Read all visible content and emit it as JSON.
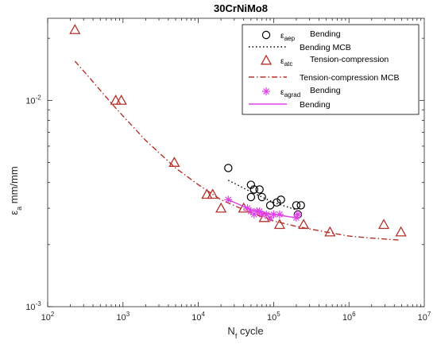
{
  "chart_data": {
    "type": "scatter",
    "title": "30CrNiMo8",
    "xlabel": {
      "base": "N",
      "sub": "f",
      "rest": " cycle"
    },
    "ylabel": {
      "base": "ε",
      "sub": "a",
      "rest": " mm/mm"
    },
    "x_scale": "log",
    "y_scale": "log",
    "xlim": [
      100,
      10000000
    ],
    "ylim": [
      0.001,
      0.025
    ],
    "x_ticks": [
      {
        "value": 100,
        "base": "10",
        "exp": "2"
      },
      {
        "value": 1000,
        "base": "10",
        "exp": "3"
      },
      {
        "value": 10000,
        "base": "10",
        "exp": "4"
      },
      {
        "value": 100000,
        "base": "10",
        "exp": "5"
      },
      {
        "value": 1000000,
        "base": "10",
        "exp": "6"
      },
      {
        "value": 10000000,
        "base": "10",
        "exp": "7"
      }
    ],
    "y_ticks": [
      {
        "value": 0.001,
        "base": "10",
        "exp": "-3"
      },
      {
        "value": 0.01,
        "base": "10",
        "exp": "-2"
      }
    ],
    "grid": false,
    "legend_position": "top-right",
    "series": [
      {
        "symbol": "ε",
        "sub": "aep",
        "name": "Bending",
        "marker": "circle",
        "color": "#000000",
        "points": [
          [
            25000,
            0.0047
          ],
          [
            50000,
            0.0039
          ],
          [
            55000,
            0.0037
          ],
          [
            65000,
            0.0037
          ],
          [
            50000,
            0.0034
          ],
          [
            70000,
            0.0034
          ],
          [
            90000,
            0.0031
          ],
          [
            110000,
            0.0032
          ],
          [
            125000,
            0.0033
          ],
          [
            200000,
            0.0031
          ],
          [
            230000,
            0.0031
          ],
          [
            210000,
            0.0028
          ]
        ]
      },
      {
        "name": "Bending MCB",
        "line_style": "dotted",
        "color": "#000000",
        "points": [
          [
            25000,
            0.0041
          ],
          [
            50000,
            0.0036
          ],
          [
            100000,
            0.0032
          ],
          [
            200000,
            0.00295
          ]
        ]
      },
      {
        "symbol": "ε",
        "sub": "atc",
        "name": "Tension-compression",
        "marker": "triangle",
        "color": "#b5312a",
        "points": [
          [
            230,
            0.022
          ],
          [
            800,
            0.01
          ],
          [
            950,
            0.01
          ],
          [
            4800,
            0.005
          ],
          [
            13000,
            0.0035
          ],
          [
            15500,
            0.0035
          ],
          [
            20000,
            0.003
          ],
          [
            40000,
            0.003
          ],
          [
            75000,
            0.0027
          ],
          [
            120000,
            0.0025
          ],
          [
            250000,
            0.0025
          ],
          [
            560000,
            0.0023
          ],
          [
            2900000,
            0.0025
          ],
          [
            4900000,
            0.0023
          ]
        ]
      },
      {
        "name": "Tension-compression MCB",
        "line_style": "dash-dot",
        "color": "#b5312a",
        "points": [
          [
            230,
            0.0155
          ],
          [
            400,
            0.0123
          ],
          [
            700,
            0.0097
          ],
          [
            1000,
            0.0084
          ],
          [
            2000,
            0.0064
          ],
          [
            5000,
            0.0047
          ],
          [
            10000,
            0.0039
          ],
          [
            20000,
            0.0033
          ],
          [
            50000,
            0.00285
          ],
          [
            100000,
            0.0026
          ],
          [
            200000,
            0.00245
          ],
          [
            500000,
            0.0023
          ],
          [
            1000000,
            0.0022
          ],
          [
            2000000,
            0.00215
          ],
          [
            4900000,
            0.0021
          ]
        ]
      },
      {
        "symbol": "ε",
        "sub": "agrad",
        "name": "Bending",
        "marker": "asterisk",
        "color": "#e040e8",
        "points": [
          [
            25000,
            0.0033
          ],
          [
            45000,
            0.003
          ],
          [
            50000,
            0.0029
          ],
          [
            55000,
            0.0028
          ],
          [
            60000,
            0.0029
          ],
          [
            65000,
            0.0029
          ],
          [
            70000,
            0.0028
          ],
          [
            80000,
            0.0028
          ],
          [
            90000,
            0.0027
          ],
          [
            100000,
            0.0028
          ],
          [
            120000,
            0.0028
          ],
          [
            200000,
            0.0027
          ],
          [
            210000,
            0.0028
          ]
        ]
      },
      {
        "name": "Bending",
        "line_style": "solid",
        "color": "#e040e8",
        "points": [
          [
            25000,
            0.0033
          ],
          [
            50000,
            0.00295
          ],
          [
            100000,
            0.0028
          ],
          [
            200000,
            0.0027
          ]
        ]
      }
    ]
  }
}
